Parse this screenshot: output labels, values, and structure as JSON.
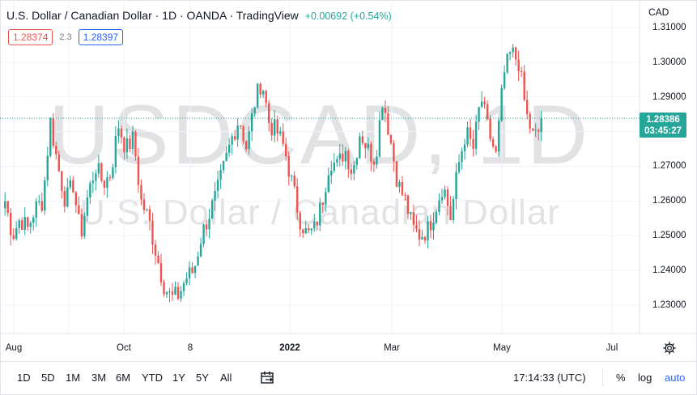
{
  "header": {
    "title": "U.S. Dollar / Canadian Dollar · 1D · OANDA · TradingView",
    "change": "+0.00692 (+0.54%)",
    "sell_price": "1.28374",
    "spread": "2.3",
    "buy_price": "1.28397"
  },
  "watermark": {
    "symbol": "USDCAD, 1D",
    "description": "U.S. Dollar / Canadian Dollar"
  },
  "price_axis": {
    "currency": "CAD",
    "labels": [
      "1.31000",
      "1.30000",
      "1.29000",
      "1.27000",
      "1.26000",
      "1.25000",
      "1.24000",
      "1.23000"
    ],
    "last_price": "1.28386",
    "countdown": "03:45:27"
  },
  "time_axis": {
    "labels": [
      "Aug",
      "Oct",
      "8",
      "2022",
      "Mar",
      "May",
      "Jul"
    ]
  },
  "bottom_bar": {
    "ranges": [
      "1D",
      "5D",
      "1M",
      "3M",
      "6M",
      "YTD",
      "1Y",
      "5Y",
      "All"
    ],
    "clock": "17:14:33 (UTC)",
    "percent_label": "%",
    "log_label": "log",
    "auto_label": "auto"
  },
  "colors": {
    "up": "#26a69a",
    "down": "#ef5350",
    "accent": "#2962ff"
  },
  "chart_data": {
    "type": "candlestick",
    "symbol": "USDCAD",
    "interval": "1D",
    "y_range": [
      1.22,
      1.315
    ],
    "last_price": 1.28386,
    "x_labels": [
      "Aug",
      "Oct",
      "8",
      "2022",
      "Mar",
      "May",
      "Jul"
    ],
    "grid": true,
    "close_path": [
      1.26,
      1.25,
      1.255,
      1.252,
      1.258,
      1.26,
      1.283,
      1.27,
      1.26,
      1.265,
      1.25,
      1.262,
      1.27,
      1.265,
      1.268,
      1.282,
      1.275,
      1.278,
      1.26,
      1.255,
      1.245,
      1.236,
      1.232,
      1.233,
      1.238,
      1.24,
      1.25,
      1.256,
      1.262,
      1.27,
      1.278,
      1.284,
      1.275,
      1.288,
      1.295,
      1.282,
      1.28,
      1.275,
      1.265,
      1.255,
      1.25,
      1.252,
      1.26,
      1.272,
      1.27,
      1.275,
      1.268,
      1.28,
      1.275,
      1.272,
      1.29,
      1.278,
      1.265,
      1.26,
      1.252,
      1.25,
      1.252,
      1.258,
      1.265,
      1.255,
      1.27,
      1.28,
      1.275,
      1.29,
      1.28,
      1.273,
      1.296,
      1.303,
      1.3,
      1.285,
      1.278,
      1.281
    ]
  }
}
